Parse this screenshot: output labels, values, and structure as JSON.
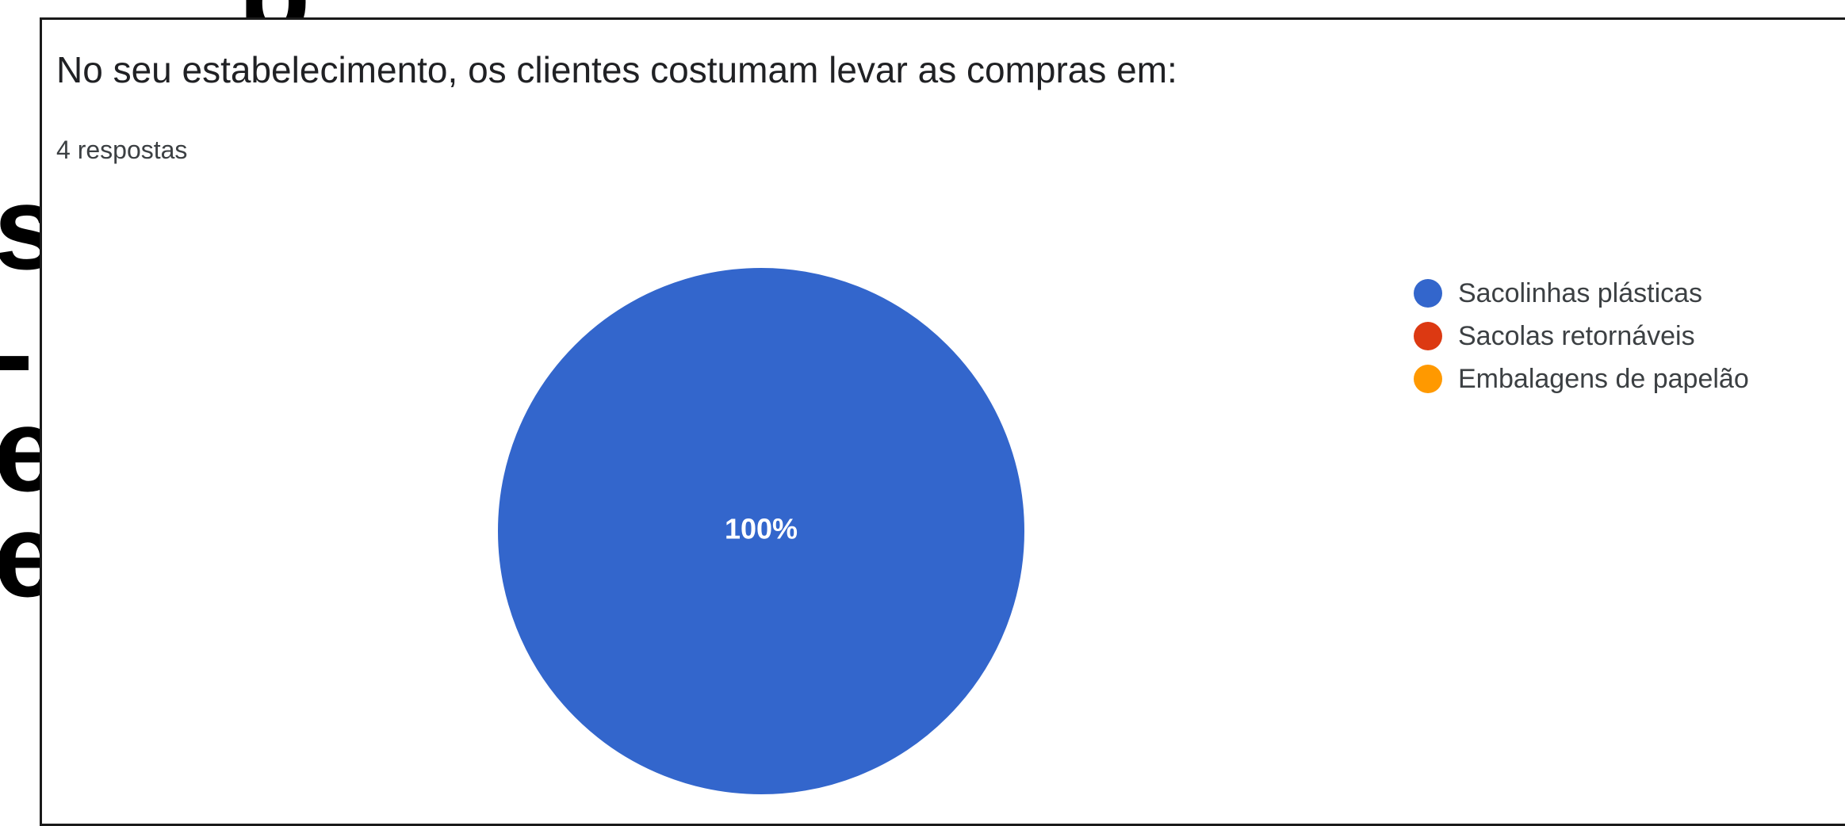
{
  "background_text": {
    "left_glyphs": [
      "s",
      "-",
      "e",
      "e"
    ]
  },
  "question_text": "No seu estabelecimento, os clientes costumam levar as compras em:",
  "responses_text": "4 respostas",
  "chart_data": {
    "type": "pie",
    "categories": [
      "Sacolinhas plásticas",
      "Sacolas retornáveis",
      "Embalagens de papelão"
    ],
    "values": [
      100,
      0,
      0
    ],
    "colors": [
      "#3366cc",
      "#dc3912",
      "#ff9900"
    ],
    "slice_labels": [
      "100%",
      "",
      ""
    ],
    "legend_position": "right"
  }
}
